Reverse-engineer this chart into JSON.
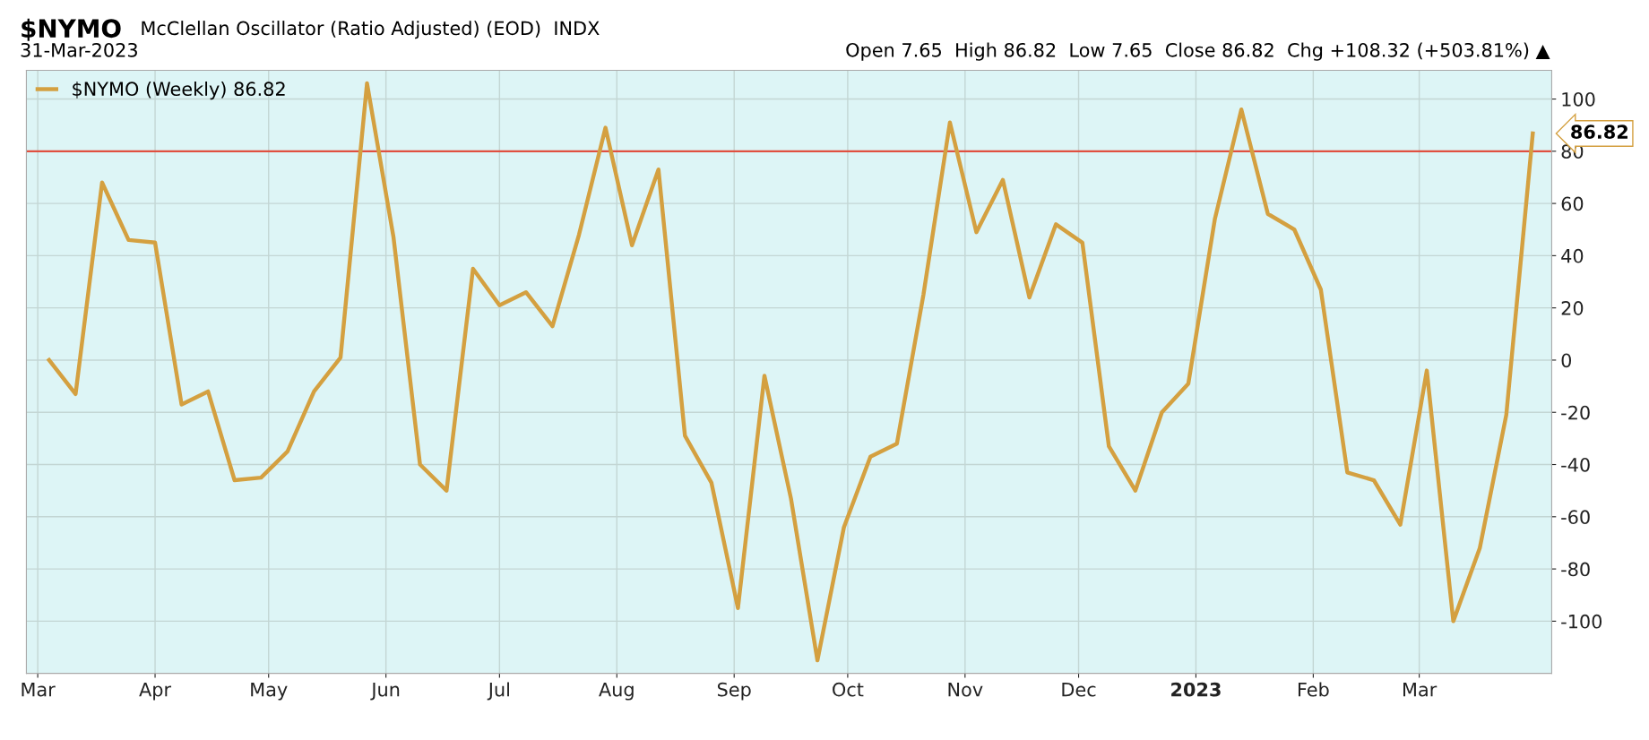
{
  "chart_data": {
    "type": "line",
    "title": "$NYMO",
    "subtitle": "McClellan Oscillator (Ratio Adjusted) (EOD)  INDX",
    "annotations": [
      "31-Mar-2023",
      "Open 7.65  High 86.82  Low 7.65  Close 86.82  Chg +108.32 (+503.81%) ▲",
      {
        "text": "86.82",
        "x": "2023-03-31",
        "y": 86.82
      }
    ],
    "x": [
      "2022-03-04",
      "2022-03-11",
      "2022-03-18",
      "2022-03-25",
      "2022-04-01",
      "2022-04-08",
      "2022-04-15",
      "2022-04-22",
      "2022-04-29",
      "2022-05-06",
      "2022-05-13",
      "2022-05-20",
      "2022-05-27",
      "2022-06-03",
      "2022-06-10",
      "2022-06-17",
      "2022-06-24",
      "2022-07-01",
      "2022-07-08",
      "2022-07-15",
      "2022-07-22",
      "2022-07-29",
      "2022-08-05",
      "2022-08-12",
      "2022-08-19",
      "2022-08-26",
      "2022-09-02",
      "2022-09-09",
      "2022-09-16",
      "2022-09-23",
      "2022-09-30",
      "2022-10-07",
      "2022-10-14",
      "2022-10-21",
      "2022-10-28",
      "2022-11-04",
      "2022-11-11",
      "2022-11-18",
      "2022-11-25",
      "2022-12-02",
      "2022-12-09",
      "2022-12-16",
      "2022-12-23",
      "2022-12-30",
      "2023-01-06",
      "2023-01-13",
      "2023-01-20",
      "2023-01-27",
      "2023-02-03",
      "2023-02-10",
      "2023-02-17",
      "2023-02-24",
      "2023-03-03",
      "2023-03-10",
      "2023-03-17",
      "2023-03-24",
      "2023-03-31"
    ],
    "series": [
      {
        "name": "$NYMO (Weekly) 86.82",
        "color": "#d4a040",
        "values": [
          0,
          -13,
          68,
          46,
          45,
          -17,
          -12,
          -46,
          -45,
          -35,
          -12,
          1,
          106,
          47,
          -40,
          -50,
          35,
          21,
          26,
          13,
          48,
          89,
          44,
          73,
          -29,
          -47,
          -95,
          -6,
          -53,
          -115,
          -64,
          -37,
          -32,
          25,
          91,
          49,
          69,
          24,
          52,
          45,
          -33,
          -50,
          -20,
          -9,
          54,
          96,
          56,
          50,
          27,
          -43,
          -46,
          -63,
          -4,
          -100,
          -72,
          -21,
          86.82
        ]
      }
    ],
    "xlim": [
      "2022-02-26",
      "2023-04-05"
    ],
    "xticks": [
      {
        "value": "2022-03-01",
        "label": "Mar"
      },
      {
        "value": "2022-04-01",
        "label": "Apr"
      },
      {
        "value": "2022-05-01",
        "label": "May"
      },
      {
        "value": "2022-06-01",
        "label": "Jun"
      },
      {
        "value": "2022-07-01",
        "label": "Jul"
      },
      {
        "value": "2022-08-01",
        "label": "Aug"
      },
      {
        "value": "2022-09-01",
        "label": "Sep"
      },
      {
        "value": "2022-10-01",
        "label": "Oct"
      },
      {
        "value": "2022-11-01",
        "label": "Nov"
      },
      {
        "value": "2022-12-01",
        "label": "Dec"
      },
      {
        "value": "2023-01-01",
        "label": "2023"
      },
      {
        "value": "2023-02-01",
        "label": "Feb"
      },
      {
        "value": "2023-03-01",
        "label": "Mar"
      }
    ],
    "ylim": [
      -120,
      111
    ],
    "yticks": [
      -100,
      -80,
      -60,
      -40,
      -20,
      0,
      20,
      40,
      60,
      80,
      100
    ],
    "ref_lines": [
      {
        "axis": "y",
        "value": 80,
        "color": "#e05040"
      }
    ],
    "grid": true,
    "legend": "top left",
    "line_style": "solid",
    "marker": "none"
  }
}
